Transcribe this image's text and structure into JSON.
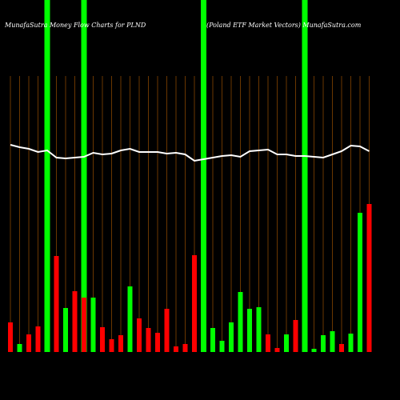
{
  "chart_data": {
    "type": "bar",
    "title": "MunafaSutra  Money Flow  Charts for PLND",
    "subtitle": "(Poland ETF Market Vectors) MunafaSutra.com",
    "categories": [
      null,
      null,
      null,
      null,
      null,
      null,
      null,
      null,
      null,
      null,
      null,
      null,
      null,
      null,
      null,
      null,
      null,
      null,
      null,
      null,
      null,
      null,
      null,
      null,
      null,
      null,
      null,
      null,
      null,
      null,
      null,
      null,
      null,
      null,
      null,
      null,
      null,
      null,
      null,
      null
    ],
    "values": [
      37,
      10,
      22,
      32,
      16,
      120,
      55,
      76,
      68,
      68,
      31,
      16,
      21,
      82,
      42,
      30,
      24,
      54,
      7,
      10,
      121,
      30,
      30,
      14,
      37,
      75,
      54,
      56,
      22,
      5,
      22,
      40,
      40,
      4,
      21,
      26,
      10,
      23,
      174,
      185
    ],
    "colors": [
      "#ff0000",
      "#00ff00",
      "#ff0000",
      "#ff0000",
      "#00ff00",
      "#ff0000",
      "#00ff00",
      "#ff0000",
      "#ff0000",
      "#00ff00",
      "#ff0000",
      "#ff0000",
      "#ff0000",
      "#00ff00",
      "#ff0000",
      "#ff0000",
      "#ff0000",
      "#ff0000",
      "#ff0000",
      "#ff0000",
      "#ff0000",
      "#00ff00",
      "#00ff00",
      "#00ff00",
      "#00ff00",
      "#00ff00",
      "#00ff00",
      "#00ff00",
      "#ff0000",
      "#ff0000",
      "#00ff00",
      "#ff0000",
      "#00ff00",
      "#00ff00",
      "#00ff00",
      "#00ff00",
      "#ff0000",
      "#00ff00",
      "#00ff00",
      "#ff0000"
    ],
    "line": [
      259,
      256,
      254,
      250,
      252,
      243,
      242,
      243,
      244,
      249,
      247,
      248,
      252,
      254,
      250,
      250,
      250,
      248,
      249,
      247,
      239,
      241,
      243,
      245,
      246,
      244,
      251,
      252,
      253,
      247,
      247,
      245,
      245,
      244,
      243,
      247,
      251,
      258,
      257,
      251
    ],
    "line_color": "#ffffff",
    "highlights": [
      4,
      8,
      21,
      32
    ],
    "highlight_color": "#00ff00",
    "ylim": [
      0,
      440
    ]
  }
}
